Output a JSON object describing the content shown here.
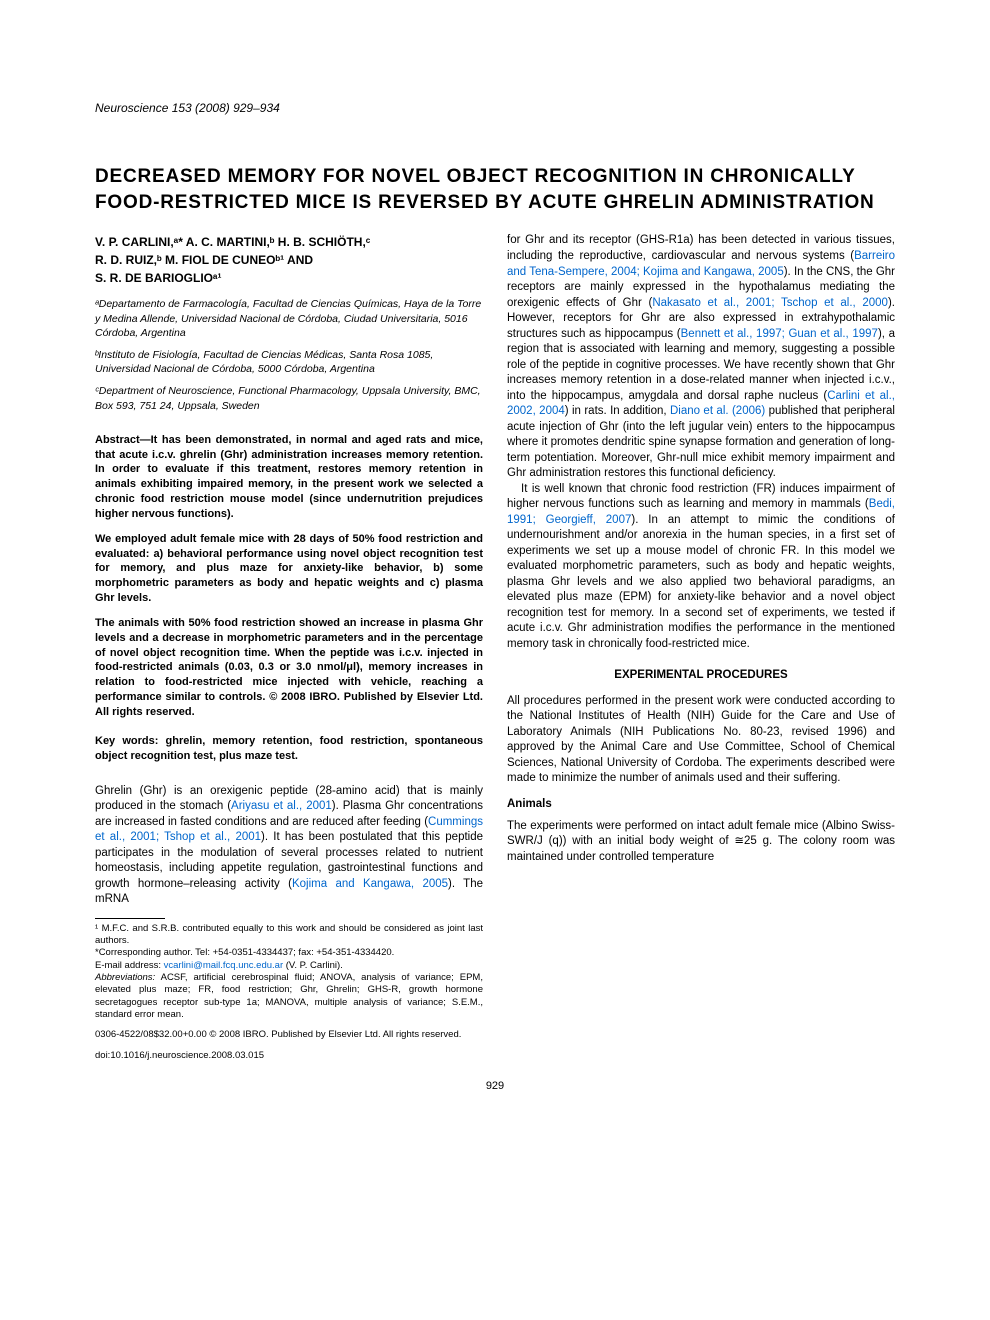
{
  "journal": "Neuroscience 153 (2008) 929–934",
  "title": "DECREASED MEMORY FOR NOVEL OBJECT RECOGNITION IN CHRONICALLY FOOD-RESTRICTED MICE IS REVERSED BY ACUTE GHRELIN ADMINISTRATION",
  "authors_line1": "V. P. CARLINI,ᵃ* A. C. MARTINI,ᵇ H. B. SCHIÖTH,ᶜ",
  "authors_line2": "R. D. RUIZ,ᵇ M. FIOL DE CUNEOᵇ¹ AND",
  "authors_line3": "S. R. DE BARIOGLIOᵃ¹",
  "affiliations": {
    "a": "ᵃDepartamento de Farmacología, Facultad de Ciencias Químicas, Haya de la Torre y Medina Allende, Universidad Nacional de Córdoba, Ciudad Universitaria, 5016 Córdoba, Argentina",
    "b": "ᵇInstituto de Fisiología, Facultad de Ciencias Médicas, Santa Rosa 1085, Universidad Nacional de Córdoba, 5000 Córdoba, Argentina",
    "c": "ᶜDepartment of Neuroscience, Functional Pharmacology, Uppsala University, BMC, Box 593, 751 24, Uppsala, Sweden"
  },
  "abstract": {
    "p1": "Abstract—It has been demonstrated, in normal and aged rats and mice, that acute i.c.v. ghrelin (Ghr) administration increases memory retention. In order to evaluate if this treatment, restores memory retention in animals exhibiting impaired memory, in the present work we selected a chronic food restriction mouse model (since undernutrition prejudices higher nervous functions).",
    "p2": "We employed adult female mice with 28 days of 50% food restriction and evaluated: a) behavioral performance using novel object recognition test for memory, and plus maze for anxiety-like behavior, b) some morphometric parameters as body and hepatic weights and c) plasma Ghr levels.",
    "p3": "The animals with 50% food restriction showed an increase in plasma Ghr levels and a decrease in morphometric parameters and in the percentage of novel object recognition time. When the peptide was i.c.v. injected in food-restricted animals (0.03, 0.3 or 3.0 nmol/μl), memory increases in relation to food-restricted mice injected with vehicle, reaching a performance similar to controls. © 2008 IBRO. Published by Elsevier Ltd. All rights reserved."
  },
  "keywords": "Key words: ghrelin, memory retention, food restriction, spontaneous object recognition test, plus maze test.",
  "intro": {
    "p1a": "Ghrelin (Ghr) is an orexigenic peptide (28-amino acid) that is mainly produced in the stomach (",
    "link1": "Ariyasu et al., 2001",
    "p1b": "). Plasma Ghr concentrations are increased in fasted conditions and are reduced after feeding (",
    "link2": "Cummings et al., 2001; Tshop et al., 2001",
    "p1c": "). It has been postulated that this peptide participates in the modulation of several processes related to nutrient homeostasis, including appetite regulation, gastrointestinal functions and growth hormone–releasing activity (",
    "link3": "Kojima and Kangawa, 2005",
    "p1d": "). The mRNA"
  },
  "footnotes": {
    "f1": "¹ M.F.C. and S.R.B. contributed equally to this work and should be considered as joint last authors.",
    "f2": "*Corresponding author. Tel: +54-0351-4334437; fax: +54-351-4334420.",
    "f3a": "E-mail address: ",
    "f3_link": "vcarlini@mail.fcq.unc.edu.ar",
    "f3b": " (V. P. Carlini).",
    "f4_label": "Abbreviations:",
    "f4": " ACSF, artificial cerebrospinal fluid; ANOVA, analysis of variance; EPM, elevated plus maze; FR, food restriction; Ghr, Ghrelin; GHS-R, growth hormone secretagogues receptor sub-type 1a; MANOVA, multiple analysis of variance; S.E.M., standard error mean."
  },
  "right": {
    "p1a": "for Ghr and its receptor (GHS-R1a) has been detected in various tissues, including the reproductive, cardiovascular and nervous systems (",
    "link1": "Barreiro and Tena-Sempere, 2004; Kojima and Kangawa, 2005",
    "p1b": "). In the CNS, the Ghr receptors are mainly expressed in the hypothalamus mediating the orexigenic effects of Ghr (",
    "link2": "Nakasato et al., 2001; Tschop et al., 2000",
    "p1c": "). However, receptors for Ghr are also expressed in extrahypothalamic structures such as hippocampus (",
    "link3": "Bennett et al., 1997; Guan et al., 1997",
    "p1d": "), a region that is associated with learning and memory, suggesting a possible role of the peptide in cognitive processes. We have recently shown that Ghr increases memory retention in a dose-related manner when injected i.c.v., into the hippocampus, amygdala and dorsal raphe nucleus (",
    "link4": "Carlini et al., 2002, 2004",
    "p1e": ") in rats. In addition, ",
    "link5": "Diano et al. (2006)",
    "p1f": " published that peripheral acute injection of Ghr (into the left jugular vein) enters to the hippocampus where it promotes dendritic spine synapse formation and generation of long-term potentiation. Moreover, Ghr-null mice exhibit memory impairment and Ghr administration restores this functional deficiency.",
    "p2a": "It is well known that chronic food restriction (FR) induces impairment of higher nervous functions such as learning and memory in mammals (",
    "link6": "Bedi, 1991; Georgieff, 2007",
    "p2b": "). In an attempt to mimic the conditions of undernourishment and/or anorexia in the human species, in a first set of experiments we set up a mouse model of chronic FR. In this model we evaluated morphometric parameters, such as body and hepatic weights, plasma Ghr levels and we also applied two behavioral paradigms, an elevated plus maze (EPM) for anxiety-like behavior and a novel object recognition test for memory. In a second set of experiments, we tested if acute i.c.v. Ghr administration modifies the performance in the mentioned memory task in chronically food-restricted mice."
  },
  "methods": {
    "heading": "EXPERIMENTAL PROCEDURES",
    "p1": "All procedures performed in the present work were conducted according to the National Institutes of Health (NIH) Guide for the Care and Use of Laboratory Animals (NIH Publications No. 80-23, revised 1996) and approved by the Animal Care and Use Committee, School of Chemical Sciences, National University of Cordoba. The experiments described were made to minimize the number of animals used and their suffering.",
    "sub": "Animals",
    "p2": "The experiments were performed on intact adult female mice (Albino Swiss-SWR/J (q)) with an initial body weight of ≅25 g. The colony room was maintained under controlled temperature"
  },
  "copyright": "0306-4522/08$32.00+0.00 © 2008 IBRO. Published by Elsevier Ltd. All rights reserved.",
  "doi": "doi:10.1016/j.neuroscience.2008.03.015",
  "page_number": "929"
}
